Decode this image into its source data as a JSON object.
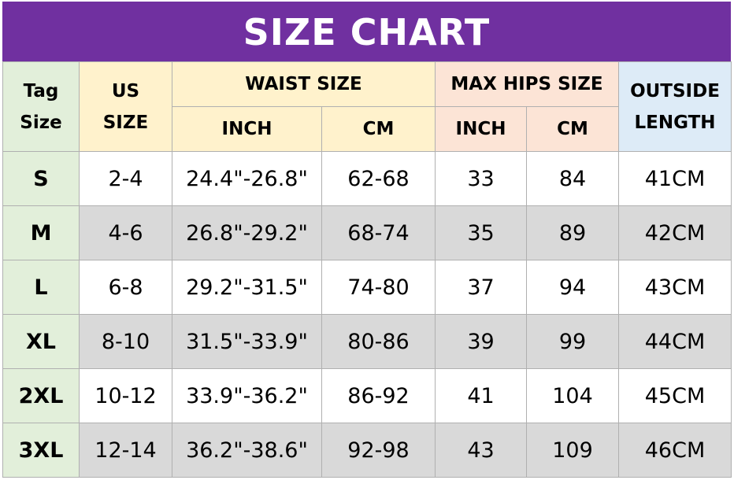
{
  "title": "SIZE CHART",
  "table": {
    "header": {
      "tag_size": [
        "Tag",
        "Size"
      ],
      "us_size": [
        "US",
        "SIZE"
      ],
      "waist_size": "WAIST SIZE",
      "max_hips_size": "MAX HIPS SIZE",
      "outside_length": [
        "OUTSIDE",
        "LENGTH"
      ],
      "waist_units": [
        "INCH",
        "CM"
      ],
      "hips_units": [
        "INCH",
        "CM"
      ]
    },
    "rows": [
      [
        "S",
        "2-4",
        "24.4\"-26.8\"",
        "62-68",
        "33",
        "84",
        "41CM"
      ],
      [
        "M",
        "4-6",
        "26.8\"-29.2\"",
        "68-74",
        "35",
        "89",
        "42CM"
      ],
      [
        "L",
        "6-8",
        "29.2\"-31.5\"",
        "74-80",
        "37",
        "94",
        "43CM"
      ],
      [
        "XL",
        "8-10",
        "31.5\"-33.9\"",
        "80-86",
        "39",
        "99",
        "44CM"
      ],
      [
        "2XL",
        "10-12",
        "33.9\"-36.2\"",
        "86-92",
        "41",
        "104",
        "45CM"
      ],
      [
        "3XL",
        "12-14",
        "36.2\"-38.6\"",
        "92-98",
        "43",
        "109",
        "46CM"
      ]
    ]
  }
}
